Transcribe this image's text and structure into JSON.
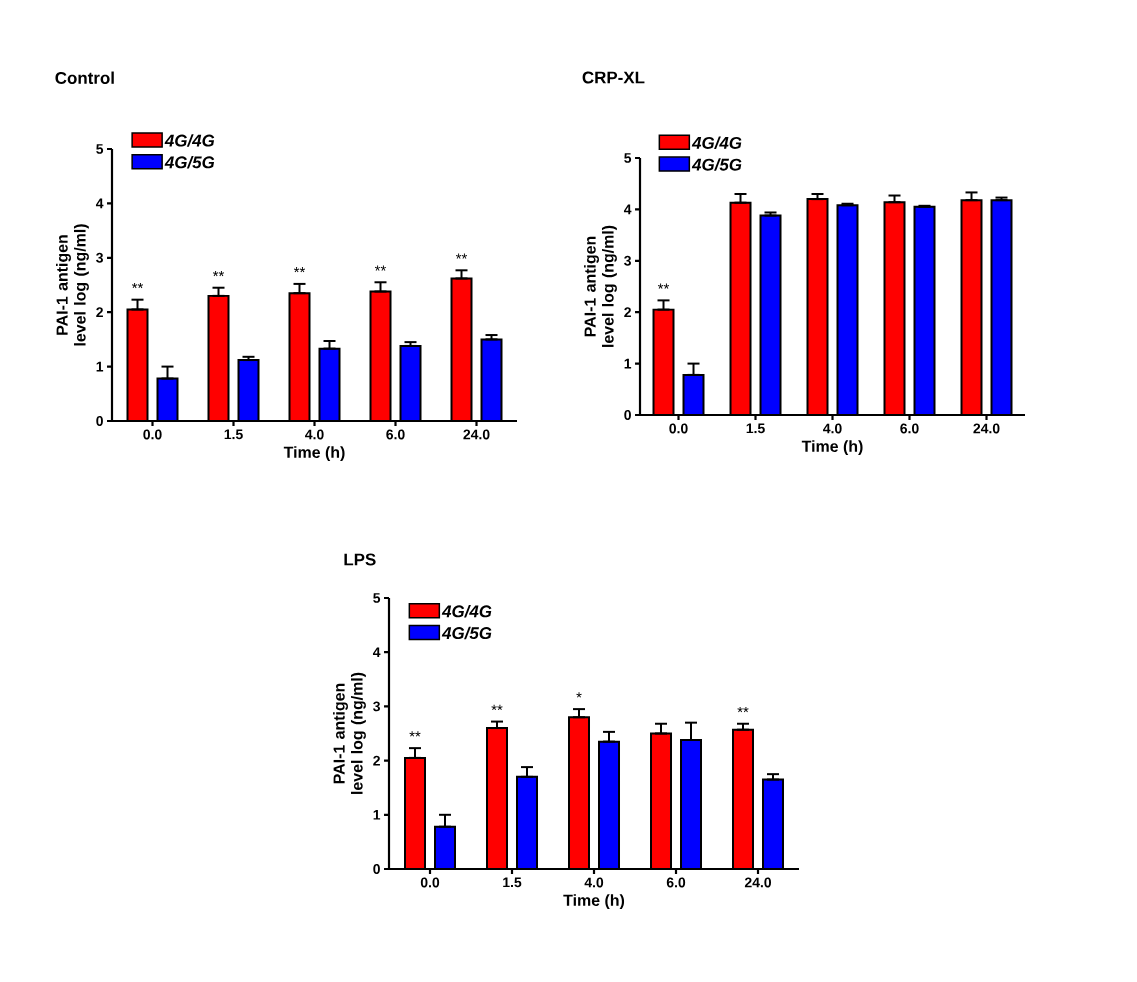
{
  "chart_data": [
    {
      "type": "bar",
      "title": "Control",
      "xlabel": "Time (h)",
      "ylabel": "PAI-1 antigen level log (ng/ml)",
      "categories": [
        "0.0",
        "1.5",
        "4.0",
        "6.0",
        "24.0"
      ],
      "ylim": [
        0,
        5
      ],
      "yticks": [
        0,
        1,
        2,
        3,
        4,
        5
      ],
      "legend": "top left",
      "series": [
        {
          "name": "*4G/4G*",
          "color": "#ff0000",
          "values": [
            2.05,
            2.3,
            2.35,
            2.38,
            2.62
          ],
          "errors": [
            [
              2.05,
              2.23
            ],
            [
              2.3,
              2.45
            ],
            [
              2.35,
              2.52
            ],
            [
              2.38,
              2.55
            ],
            [
              2.62,
              2.77
            ]
          ]
        },
        {
          "name": "*4G/5G*",
          "color": "#0000ff",
          "values": [
            0.78,
            1.12,
            1.33,
            1.38,
            1.5
          ],
          "errors": [
            [
              0.78,
              1.0
            ],
            [
              1.12,
              1.18
            ],
            [
              1.33,
              1.47
            ],
            [
              1.38,
              1.45
            ],
            [
              1.5,
              1.58
            ]
          ]
        }
      ],
      "annotations": [
        "**",
        "**",
        "**",
        "**",
        "**"
      ]
    },
    {
      "type": "bar",
      "title": "CRP-XL",
      "xlabel": "Time (h)",
      "ylabel": "PAI-1 antigen level log (ng/ml)",
      "categories": [
        "0.0",
        "1.5",
        "4.0",
        "6.0",
        "24.0"
      ],
      "ylim": [
        0,
        5
      ],
      "yticks": [
        0,
        1,
        2,
        3,
        4,
        5
      ],
      "legend": "top left",
      "series": [
        {
          "name": "*4G/4G*",
          "color": "#ff0000",
          "values": [
            2.05,
            4.13,
            4.2,
            4.14,
            4.18
          ],
          "errors": [
            [
              2.05,
              2.23
            ],
            [
              4.13,
              4.3
            ],
            [
              4.2,
              4.3
            ],
            [
              4.14,
              4.27
            ],
            [
              4.18,
              4.33
            ]
          ]
        },
        {
          "name": "*4G/5G*",
          "color": "#0000ff",
          "values": [
            0.78,
            3.88,
            4.08,
            4.05,
            4.18
          ],
          "errors": [
            [
              0.78,
              1.0
            ],
            [
              3.88,
              3.94
            ],
            [
              4.08,
              4.11
            ],
            [
              4.05,
              4.07
            ],
            [
              4.18,
              4.23
            ]
          ]
        }
      ],
      "annotations": [
        "**"
      ]
    },
    {
      "type": "bar",
      "title": "LPS",
      "xlabel": "Time (h)",
      "ylabel": "PAI-1 antigen level log (ng/ml)",
      "categories": [
        "0.0",
        "1.5",
        "4.0",
        "6.0",
        "24.0"
      ],
      "ylim": [
        0,
        5
      ],
      "yticks": [
        0,
        1,
        2,
        3,
        4,
        5
      ],
      "legend": "top left",
      "series": [
        {
          "name": "*4G/4G*",
          "color": "#ff0000",
          "values": [
            2.05,
            2.6,
            2.8,
            2.5,
            2.57
          ],
          "errors": [
            [
              2.05,
              2.23
            ],
            [
              2.6,
              2.72
            ],
            [
              2.8,
              2.95
            ],
            [
              2.5,
              2.68
            ],
            [
              2.57,
              2.68
            ]
          ]
        },
        {
          "name": "*4G/5G*",
          "color": "#0000ff",
          "values": [
            0.78,
            1.7,
            2.35,
            2.38,
            1.65
          ],
          "errors": [
            [
              0.78,
              1.0
            ],
            [
              1.7,
              1.88
            ],
            [
              2.35,
              2.53
            ],
            [
              2.38,
              2.7
            ],
            [
              1.65,
              1.75
            ]
          ]
        }
      ],
      "annotations": [
        "**",
        "**",
        "*",
        "**"
      ]
    }
  ]
}
